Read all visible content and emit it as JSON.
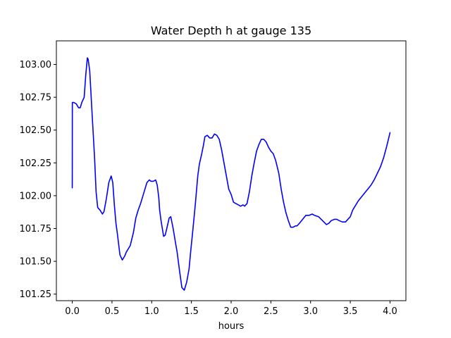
{
  "chart_data": {
    "type": "line",
    "title": "Water Depth h at gauge 135",
    "xlabel": "hours",
    "ylabel": "",
    "xlim": [
      -0.2,
      4.2
    ],
    "ylim": [
      101.2,
      103.18
    ],
    "grid": false,
    "x_ticks": [
      {
        "value": 0.0,
        "label": "0.0"
      },
      {
        "value": 0.5,
        "label": "0.5"
      },
      {
        "value": 1.0,
        "label": "1.0"
      },
      {
        "value": 1.5,
        "label": "1.5"
      },
      {
        "value": 2.0,
        "label": "2.0"
      },
      {
        "value": 2.5,
        "label": "2.5"
      },
      {
        "value": 3.0,
        "label": "3.0"
      },
      {
        "value": 3.5,
        "label": "3.5"
      },
      {
        "value": 4.0,
        "label": "4.0"
      }
    ],
    "y_ticks": [
      {
        "value": 101.25,
        "label": "101.25"
      },
      {
        "value": 101.5,
        "label": "101.50"
      },
      {
        "value": 101.75,
        "label": "101.75"
      },
      {
        "value": 102.0,
        "label": "102.00"
      },
      {
        "value": 102.25,
        "label": "102.25"
      },
      {
        "value": 102.5,
        "label": "102.50"
      },
      {
        "value": 102.75,
        "label": "102.75"
      },
      {
        "value": 103.0,
        "label": "103.00"
      }
    ],
    "series": [
      {
        "color": "#0000ff",
        "x": [
          0.0,
          0.001,
          0.02,
          0.05,
          0.08,
          0.1,
          0.12,
          0.15,
          0.17,
          0.19,
          0.2,
          0.22,
          0.25,
          0.28,
          0.3,
          0.32,
          0.35,
          0.38,
          0.4,
          0.43,
          0.46,
          0.49,
          0.51,
          0.53,
          0.55,
          0.57,
          0.6,
          0.63,
          0.66,
          0.68,
          0.7,
          0.73,
          0.77,
          0.8,
          0.83,
          0.86,
          0.9,
          0.94,
          0.97,
          0.99,
          1.02,
          1.05,
          1.07,
          1.09,
          1.1,
          1.12,
          1.15,
          1.17,
          1.19,
          1.22,
          1.24,
          1.27,
          1.3,
          1.32,
          1.35,
          1.38,
          1.41,
          1.44,
          1.47,
          1.49,
          1.52,
          1.55,
          1.58,
          1.6,
          1.63,
          1.65,
          1.67,
          1.7,
          1.73,
          1.76,
          1.79,
          1.82,
          1.85,
          1.88,
          1.91,
          1.94,
          1.97,
          2.0,
          2.03,
          2.06,
          2.09,
          2.12,
          2.15,
          2.17,
          2.2,
          2.23,
          2.26,
          2.29,
          2.32,
          2.35,
          2.38,
          2.41,
          2.44,
          2.47,
          2.5,
          2.53,
          2.56,
          2.6,
          2.63,
          2.66,
          2.69,
          2.72,
          2.75,
          2.78,
          2.81,
          2.83,
          2.86,
          2.9,
          2.94,
          2.98,
          3.02,
          3.05,
          3.1,
          3.15,
          3.2,
          3.23,
          3.26,
          3.3,
          3.33,
          3.36,
          3.4,
          3.44,
          3.47,
          3.5,
          3.53,
          3.56,
          3.6,
          3.64,
          3.68,
          3.72,
          3.76,
          3.8,
          3.84,
          3.88,
          3.92,
          3.96,
          4.0
        ],
        "y": [
          102.06,
          102.71,
          102.71,
          102.7,
          102.67,
          102.67,
          102.71,
          102.75,
          102.92,
          103.05,
          103.04,
          102.95,
          102.62,
          102.3,
          102.03,
          101.91,
          101.89,
          101.86,
          101.88,
          101.98,
          102.1,
          102.15,
          102.1,
          101.93,
          101.79,
          101.7,
          101.55,
          101.51,
          101.54,
          101.57,
          101.59,
          101.62,
          101.72,
          101.83,
          101.89,
          101.94,
          102.02,
          102.1,
          102.12,
          102.11,
          102.11,
          102.12,
          102.08,
          101.98,
          101.89,
          101.8,
          101.69,
          101.7,
          101.75,
          101.83,
          101.84,
          101.75,
          101.64,
          101.57,
          101.43,
          101.3,
          101.28,
          101.34,
          101.44,
          101.57,
          101.75,
          101.94,
          102.15,
          102.24,
          102.32,
          102.38,
          102.45,
          102.46,
          102.44,
          102.44,
          102.47,
          102.46,
          102.43,
          102.35,
          102.25,
          102.15,
          102.05,
          102.01,
          101.95,
          101.94,
          101.93,
          101.92,
          101.93,
          101.92,
          101.94,
          102.03,
          102.15,
          102.25,
          102.34,
          102.39,
          102.43,
          102.43,
          102.41,
          102.37,
          102.34,
          102.32,
          102.27,
          102.17,
          102.05,
          101.95,
          101.87,
          101.81,
          101.76,
          101.76,
          101.77,
          101.77,
          101.79,
          101.82,
          101.85,
          101.85,
          101.86,
          101.85,
          101.84,
          101.81,
          101.78,
          101.79,
          101.81,
          101.82,
          101.82,
          101.81,
          101.8,
          101.8,
          101.82,
          101.84,
          101.89,
          101.92,
          101.96,
          101.99,
          102.02,
          102.05,
          102.08,
          102.12,
          102.17,
          102.22,
          102.29,
          102.38,
          102.48
        ]
      }
    ]
  }
}
